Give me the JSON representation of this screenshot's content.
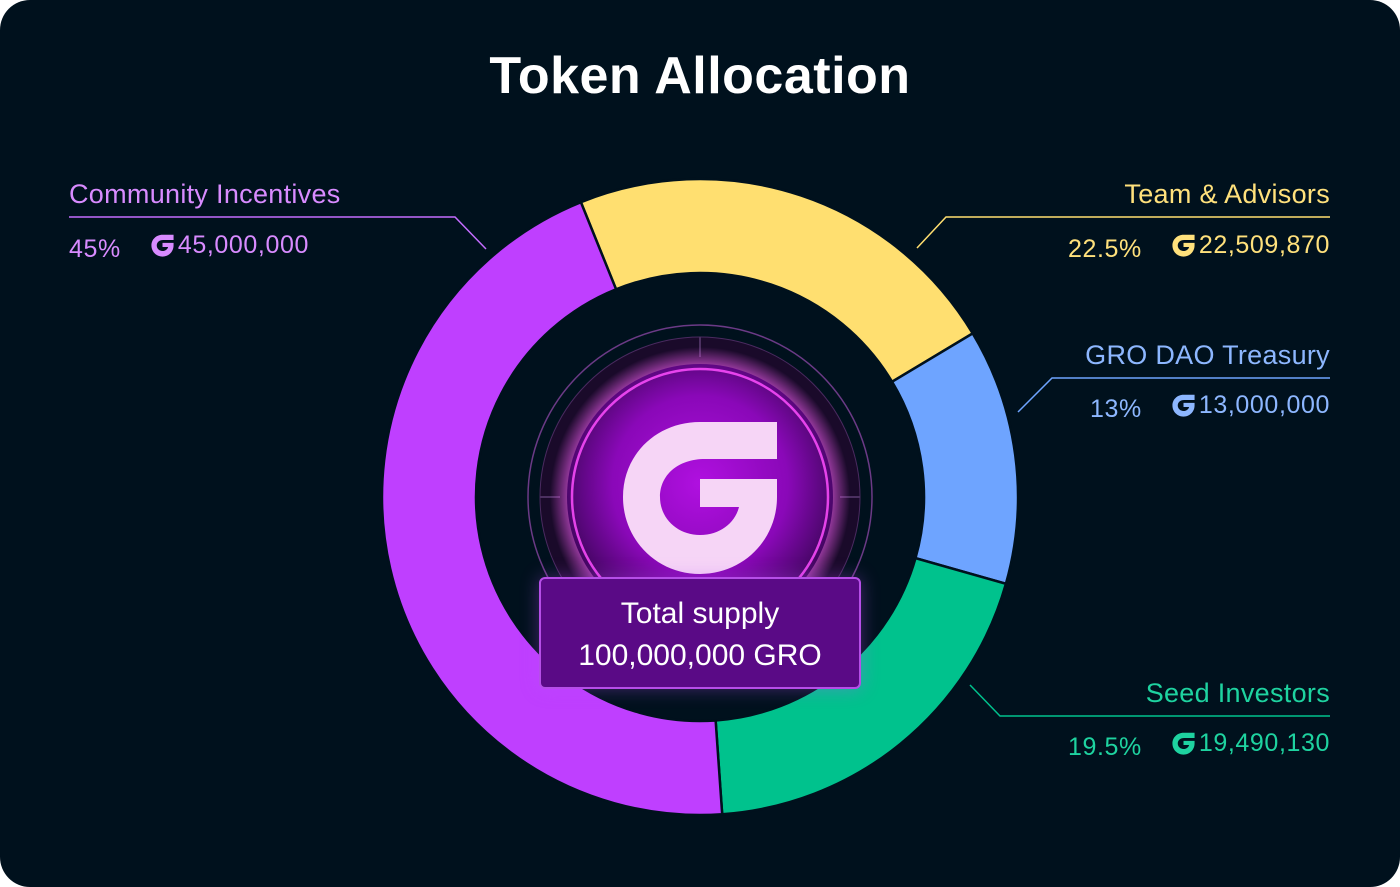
{
  "colors": {
    "background": "#00111d",
    "community": "#bf3fff",
    "team": "#ffdf70",
    "treasury": "#6ea4ff",
    "seed": "#00c28d",
    "community_text": "#d88bff",
    "team_text": "#ffe17c",
    "treasury_text": "#8db7ff",
    "seed_text": "#1ed3a0"
  },
  "icons": {
    "token": "gro-logo-icon"
  },
  "center": {
    "line1": "Total supply",
    "line2": "100,000,000 GRO"
  },
  "chart_data": {
    "type": "pie",
    "variant": "donut",
    "title": "Token Allocation",
    "series": [
      {
        "name": "Community Incentives",
        "percent_label": "45%",
        "amount_label": "45,000,000",
        "value": 45000000
      },
      {
        "name": "Team & Advisors",
        "percent_label": "22.5%",
        "amount_label": "22,509,870",
        "value": 22509870
      },
      {
        "name": "GRO DAO Treasury",
        "percent_label": "13%",
        "amount_label": "13,000,000",
        "value": 13000000
      },
      {
        "name": "Seed Investors",
        "percent_label": "19.5%",
        "amount_label": "19,490,130",
        "value": 19490130
      }
    ],
    "legend": "callouts"
  }
}
